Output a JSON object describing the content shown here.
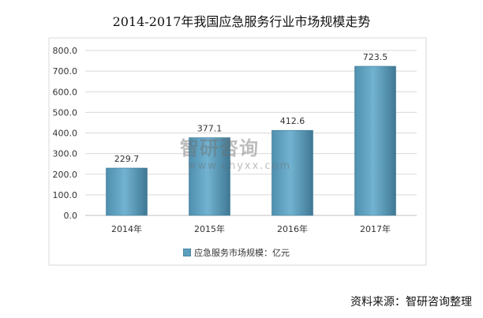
{
  "chart_data": {
    "type": "bar",
    "title": "2014-2017年我国应急服务行业市场规模走势",
    "categories": [
      "2014年",
      "2015年",
      "2016年",
      "2017年"
    ],
    "series": [
      {
        "name": "应急服务市场规模：亿元",
        "values": [
          229.7,
          377.1,
          412.6,
          723.5
        ]
      }
    ],
    "data_labels": [
      "229.7",
      "377.1",
      "412.6",
      "723.5"
    ],
    "y_ticks": [
      "0.0",
      "100.0",
      "200.0",
      "300.0",
      "400.0",
      "500.0",
      "600.0",
      "700.0",
      "800.0"
    ],
    "ylim": [
      0,
      800
    ],
    "grid": true,
    "legend_position": "bottom"
  },
  "source": "资料来源：智研咨询整理",
  "watermark": {
    "logo_text": "智研咨询",
    "url": "www.chyxx.com"
  },
  "colors": {
    "bar": "#5b9fbe",
    "bar_dark": "#3f7893",
    "grid": "#d9d9d9"
  }
}
